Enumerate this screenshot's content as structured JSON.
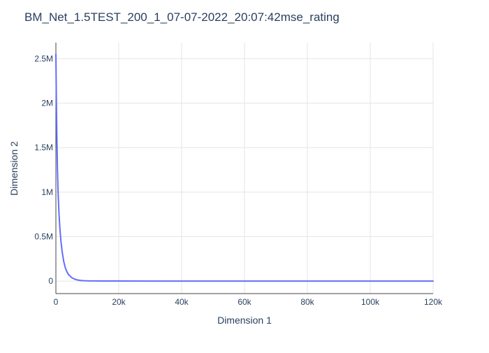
{
  "chart_data": {
    "type": "line",
    "title": "BM_Net_1.5TEST_200_1_07-07-2022_20:07:42mse_rating",
    "xlabel": "Dimension 1",
    "ylabel": "Dimension 2",
    "xlim": [
      0,
      120000
    ],
    "ylim": [
      -140000,
      2680000
    ],
    "x_ticks": [
      0,
      20000,
      40000,
      60000,
      80000,
      100000,
      120000
    ],
    "x_tick_labels": [
      "0",
      "20k",
      "40k",
      "60k",
      "80k",
      "100k",
      "120k"
    ],
    "y_ticks": [
      0,
      500000,
      1000000,
      1500000,
      2000000,
      2500000
    ],
    "y_tick_labels": [
      "0",
      "0.5M",
      "1M",
      "1.5M",
      "2M",
      "2.5M"
    ],
    "grid": true,
    "legend": "none",
    "series": [
      {
        "color": "#636efa",
        "x": [
          0,
          150,
          300,
          500,
          700,
          1000,
          1300,
          1600,
          2000,
          2500,
          3000,
          3500,
          4000,
          5000,
          6000,
          7000,
          8000,
          9000,
          10000,
          12000,
          15000,
          20000,
          30000,
          40000,
          50000,
          60000,
          70000,
          80000,
          90000,
          100000,
          110000,
          120000
        ],
        "y": [
          2550000,
          2050000,
          1650000,
          1250000,
          1000000,
          750000,
          580000,
          450000,
          330000,
          220000,
          150000,
          105000,
          75000,
          40000,
          22000,
          12000,
          7000,
          4500,
          3000,
          2000,
          1500,
          1000,
          800,
          600,
          500,
          400,
          350,
          300,
          280,
          250,
          230,
          200
        ]
      }
    ]
  }
}
